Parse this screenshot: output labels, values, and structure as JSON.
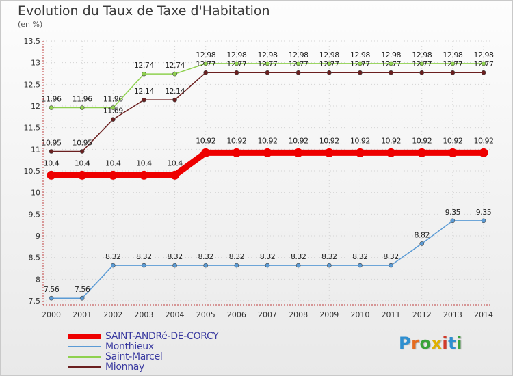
{
  "header": {
    "title": "Evolution du Taux de Taxe d'Habitation",
    "subtitle": "(en %)"
  },
  "logo": {
    "letters": [
      "P",
      "r",
      "o",
      "x",
      "i",
      "t",
      "i"
    ],
    "colors": [
      "#2f8fd0",
      "#e56b1f",
      "#3aa33a",
      "#e0b000",
      "#d23a2a",
      "#2f8fd0",
      "#3aa33a"
    ]
  },
  "chart_data": {
    "type": "line",
    "title": "Evolution du Taux de Taxe d'Habitation",
    "ylabel": "(en %)",
    "xlabel": "",
    "x": [
      2000,
      2001,
      2002,
      2003,
      2004,
      2005,
      2006,
      2007,
      2008,
      2009,
      2010,
      2011,
      2012,
      2013,
      2014
    ],
    "ylim": [
      7.5,
      13.5
    ],
    "yticks": [
      7.5,
      8,
      8.5,
      9,
      9.5,
      10,
      10.5,
      11,
      11.5,
      12,
      12.5,
      13,
      13.5
    ],
    "ytick_labels": [
      "7.5",
      "8",
      "8.5",
      "9",
      "9.5",
      "10",
      "10.5",
      "11",
      "11.5",
      "12",
      "12.5",
      "13",
      "13.5"
    ],
    "grid": true,
    "legend_position": "bottom-left",
    "series": [
      {
        "name": "Saint-Marcel",
        "color": "#8fd14f",
        "values": [
          11.96,
          11.96,
          11.96,
          12.74,
          12.74,
          12.98,
          12.98,
          12.98,
          12.98,
          12.98,
          12.98,
          12.98,
          12.98,
          12.98,
          12.98
        ],
        "labels": [
          "11.96",
          "11.96",
          "11.96",
          "12.74",
          "12.74",
          "12.98",
          "12.98",
          "12.98",
          "12.98",
          "12.98",
          "12.98",
          "12.98",
          "12.98",
          "12.98",
          "12.98"
        ]
      },
      {
        "name": "Mionnay",
        "color": "#6b1f1f",
        "values": [
          10.95,
          10.95,
          11.69,
          12.14,
          12.14,
          12.77,
          12.77,
          12.77,
          12.77,
          12.77,
          12.77,
          12.77,
          12.77,
          12.77,
          12.77
        ],
        "labels": [
          "10.95",
          "10.95",
          "11.69",
          "12.14",
          "12.14",
          "12.77",
          "12.77",
          "12.77",
          "12.77",
          "12.77",
          "12.77",
          "12.77",
          "12.77",
          "12.77",
          "12.77"
        ]
      },
      {
        "name": "Monthieux",
        "color": "#5b9bd5",
        "values": [
          7.56,
          7.56,
          8.32,
          8.32,
          8.32,
          8.32,
          8.32,
          8.32,
          8.32,
          8.32,
          8.32,
          8.32,
          8.82,
          9.35,
          9.35
        ],
        "labels": [
          "7.56",
          "7.56",
          "8.32",
          "8.32",
          "8.32",
          "8.32",
          "8.32",
          "8.32",
          "8.32",
          "8.32",
          "8.32",
          "8.32",
          "8.82",
          "9.35",
          "9.35"
        ]
      },
      {
        "name": "SAINT-ANDRé-DE-CORCY",
        "color": "#ee0000",
        "values": [
          10.4,
          10.4,
          10.4,
          10.4,
          10.4,
          10.92,
          10.92,
          10.92,
          10.92,
          10.92,
          10.92,
          10.92,
          10.92,
          10.92,
          10.92
        ],
        "labels": [
          "10.4",
          "10.4",
          "10.4",
          "10.4",
          "10.4",
          "10.92",
          "10.92",
          "10.92",
          "10.92",
          "10.92",
          "10.92",
          "10.92",
          "10.92",
          "10.92",
          "10.92"
        ]
      }
    ]
  },
  "legend": {
    "items": [
      {
        "label": "SAINT-ANDRé-DE-CORCY",
        "color": "#ee0000",
        "weight": "thick"
      },
      {
        "label": "Monthieux",
        "color": "#5b9bd5",
        "weight": "thin"
      },
      {
        "label": "Saint-Marcel",
        "color": "#8fd14f",
        "weight": "thin"
      },
      {
        "label": "Mionnay",
        "color": "#6b1f1f",
        "weight": "thin"
      }
    ]
  }
}
